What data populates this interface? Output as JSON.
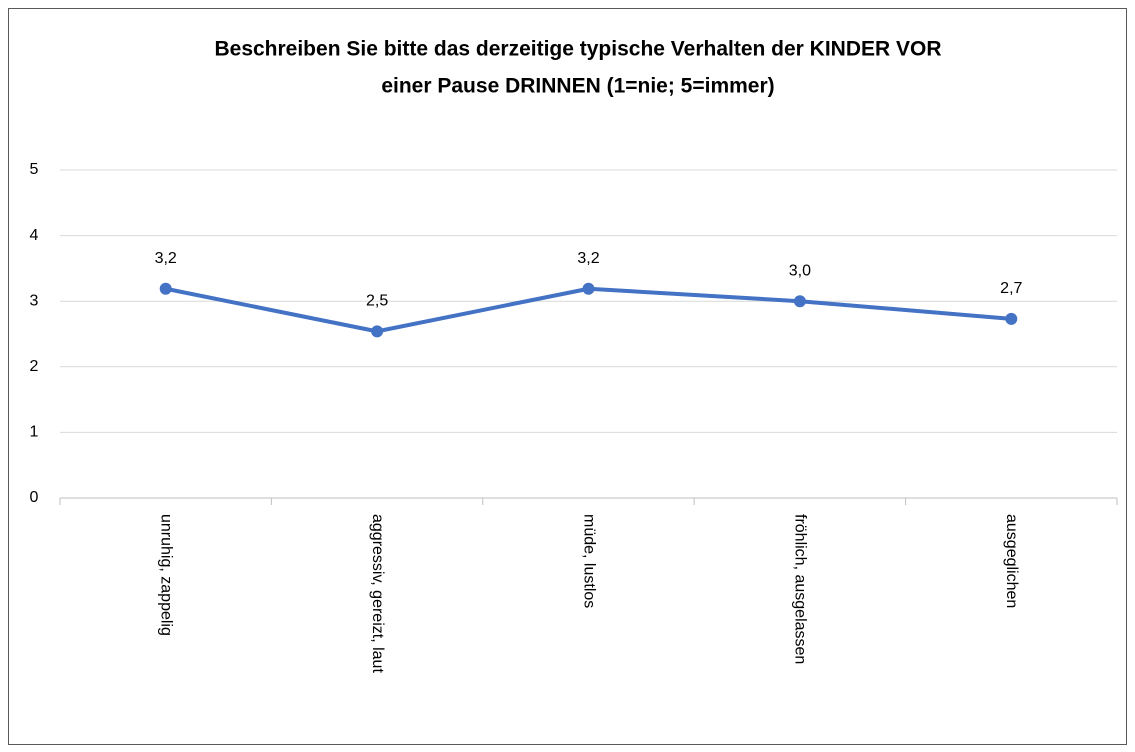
{
  "chart_data": {
    "type": "line",
    "title": [
      "Beschreiben Sie bitte das derzeitige typische Verhalten der KINDER VOR",
      "einer Pause DRINNEN (1=nie; 5=immer)"
    ],
    "categories": [
      "unruhig, zappelig",
      "aggressiv, gereizt, laut",
      "müde, lustlos",
      "fröhlich, ausgelassen",
      "ausgeglichen"
    ],
    "values": [
      3.19,
      2.54,
      3.19,
      3.0,
      2.73
    ],
    "value_labels": [
      "3,2",
      "2,5",
      "3,2",
      "3,0",
      "2,7"
    ],
    "color": "#4472c4",
    "ylim": [
      0,
      5
    ],
    "yticks": [
      0,
      1,
      2,
      3,
      4,
      5
    ],
    "grid": true
  }
}
